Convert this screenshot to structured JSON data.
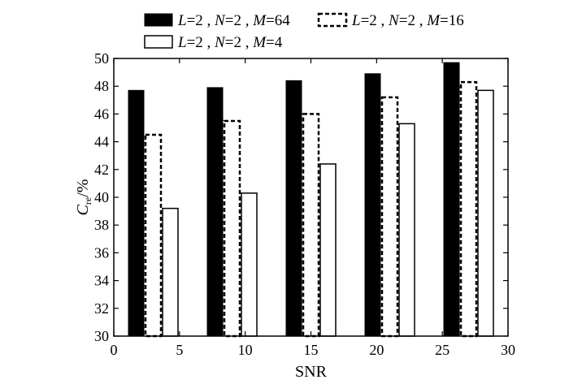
{
  "chart_data": {
    "type": "bar",
    "xlabel": "SNR",
    "ylabel": "C_re/%",
    "ylabel_main": "C",
    "ylabel_sub": "re",
    "ylabel_suffix": "/%",
    "xlim": [
      0,
      30
    ],
    "ylim": [
      30,
      50
    ],
    "xticks": [
      0,
      5,
      10,
      15,
      20,
      25,
      30
    ],
    "yticks": [
      30,
      32,
      34,
      36,
      38,
      40,
      42,
      44,
      46,
      48,
      50
    ],
    "grid": false,
    "legend_position": "top",
    "x": [
      3,
      9,
      15,
      21,
      27
    ],
    "series": [
      {
        "name": "L=2, N=2, M=64",
        "style": "solid",
        "values": [
          47.7,
          47.9,
          48.4,
          48.9,
          49.7
        ]
      },
      {
        "name": "L=2, N=2, M=16",
        "style": "dashed",
        "values": [
          44.5,
          45.5,
          46.0,
          47.2,
          48.3
        ]
      },
      {
        "name": "L=2, N=2, M=4",
        "style": "hollow",
        "values": [
          39.2,
          40.3,
          42.4,
          45.3,
          47.7
        ]
      }
    ]
  }
}
